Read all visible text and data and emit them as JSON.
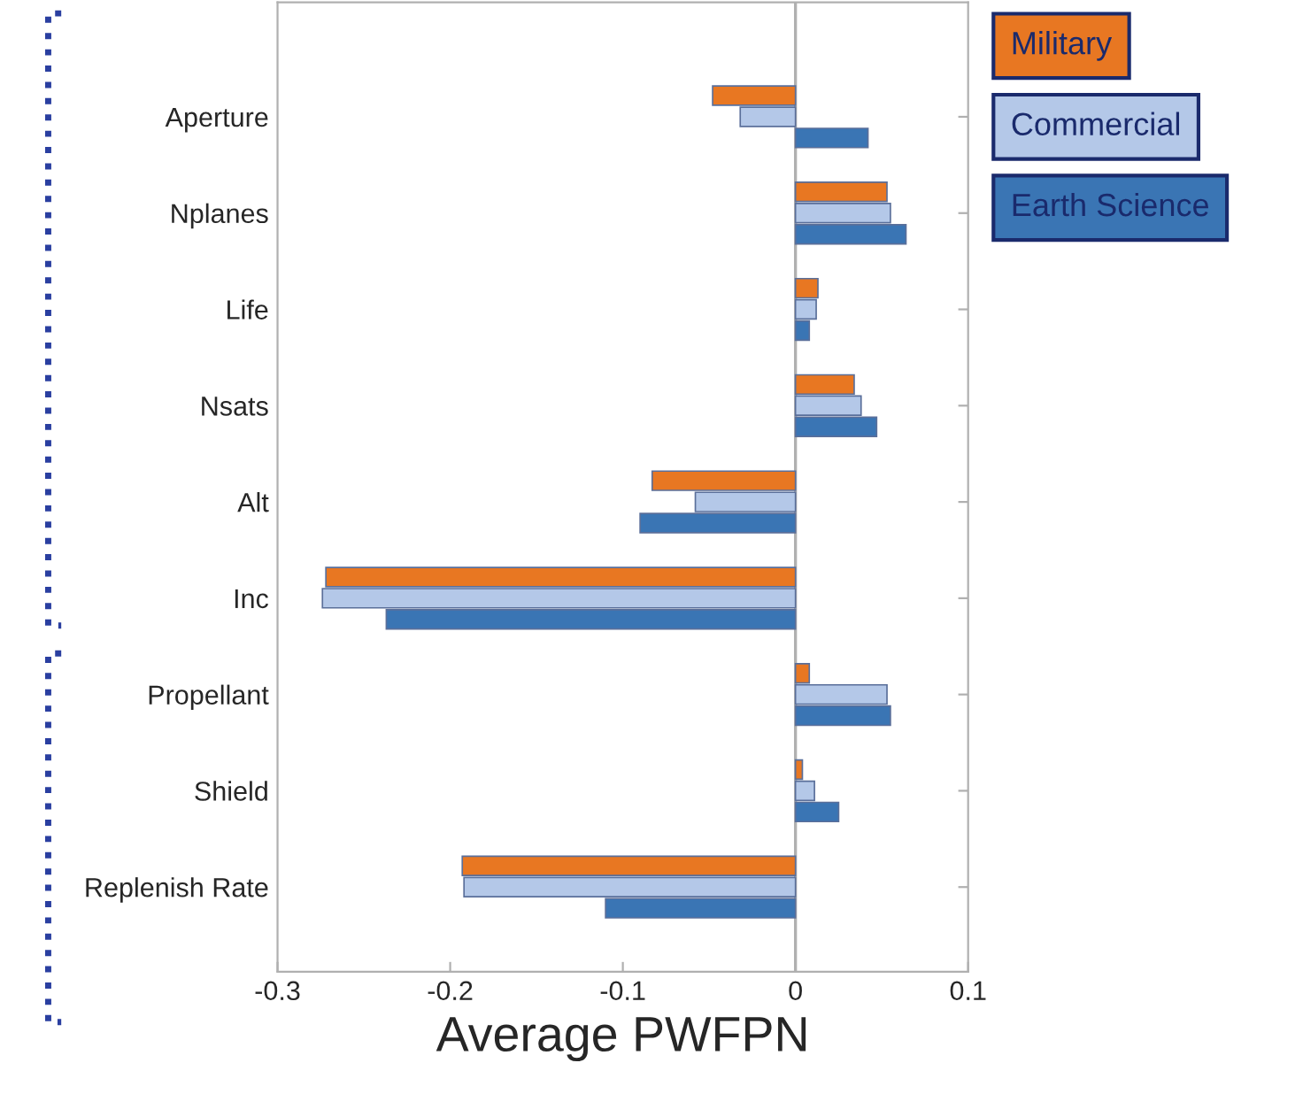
{
  "chart_data": {
    "type": "bar",
    "orientation": "horizontal",
    "xlabel": "Average PWFPN",
    "categories": [
      "Aperture",
      "Nplanes",
      "Life",
      "Nsats",
      "Alt",
      "Inc",
      "Propellant",
      "Shield",
      "Replenish Rate"
    ],
    "series": [
      {
        "name": "Military",
        "color": "#e87722",
        "values": [
          -0.048,
          0.053,
          0.013,
          0.034,
          -0.083,
          -0.272,
          0.008,
          0.004,
          -0.193
        ]
      },
      {
        "name": "Commercial",
        "color": "#b4c8e8",
        "values": [
          -0.032,
          0.055,
          0.012,
          0.038,
          -0.058,
          -0.274,
          0.053,
          0.011,
          -0.192
        ]
      },
      {
        "name": "Earth Science",
        "color": "#3a75b4",
        "values": [
          0.042,
          0.064,
          0.008,
          0.047,
          -0.09,
          -0.237,
          0.055,
          0.025,
          -0.11
        ]
      }
    ],
    "xlim": [
      -0.3,
      0.1
    ],
    "xticks": [
      -0.3,
      -0.2,
      -0.1,
      0,
      0.1
    ],
    "ref_lines": [
      {
        "axis": "x",
        "value": 0,
        "color": "#b0b0b0"
      }
    ],
    "grid": false,
    "legend": "top right"
  }
}
